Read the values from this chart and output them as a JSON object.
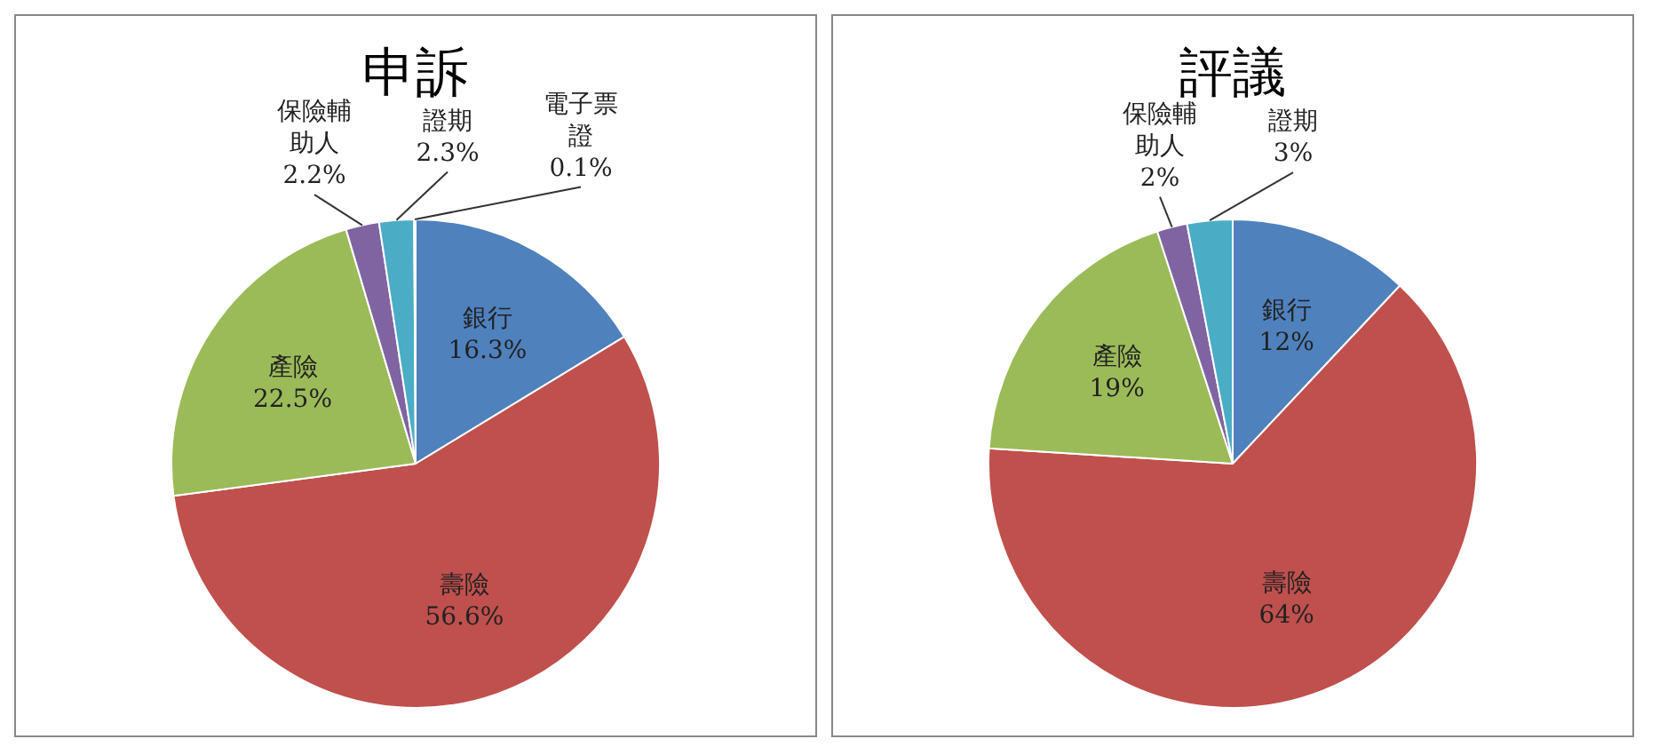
{
  "chart_data": [
    {
      "type": "pie",
      "title": "申訴",
      "categories": [
        "銀行",
        "壽險",
        "產險",
        "保險輔助人",
        "證期",
        "電子票證"
      ],
      "values": [
        16.3,
        56.6,
        22.5,
        2.2,
        2.3,
        0.1
      ],
      "value_labels": [
        "16.3%",
        "56.6%",
        "22.5%",
        "2.2%",
        "2.3%",
        "0.1%"
      ],
      "colors": [
        "#4f81bd",
        "#c0504d",
        "#9bbb59",
        "#8064a2",
        "#4bacc6",
        "#f79646"
      ],
      "legend": false
    },
    {
      "type": "pie",
      "title": "評議",
      "categories": [
        "銀行",
        "壽險",
        "產險",
        "保險輔助人",
        "證期"
      ],
      "values": [
        12,
        64,
        19,
        2,
        3
      ],
      "value_labels": [
        "12%",
        "64%",
        "19%",
        "2%",
        "3%"
      ],
      "colors": [
        "#4f81bd",
        "#c0504d",
        "#9bbb59",
        "#8064a2",
        "#4bacc6"
      ],
      "legend": false
    }
  ]
}
